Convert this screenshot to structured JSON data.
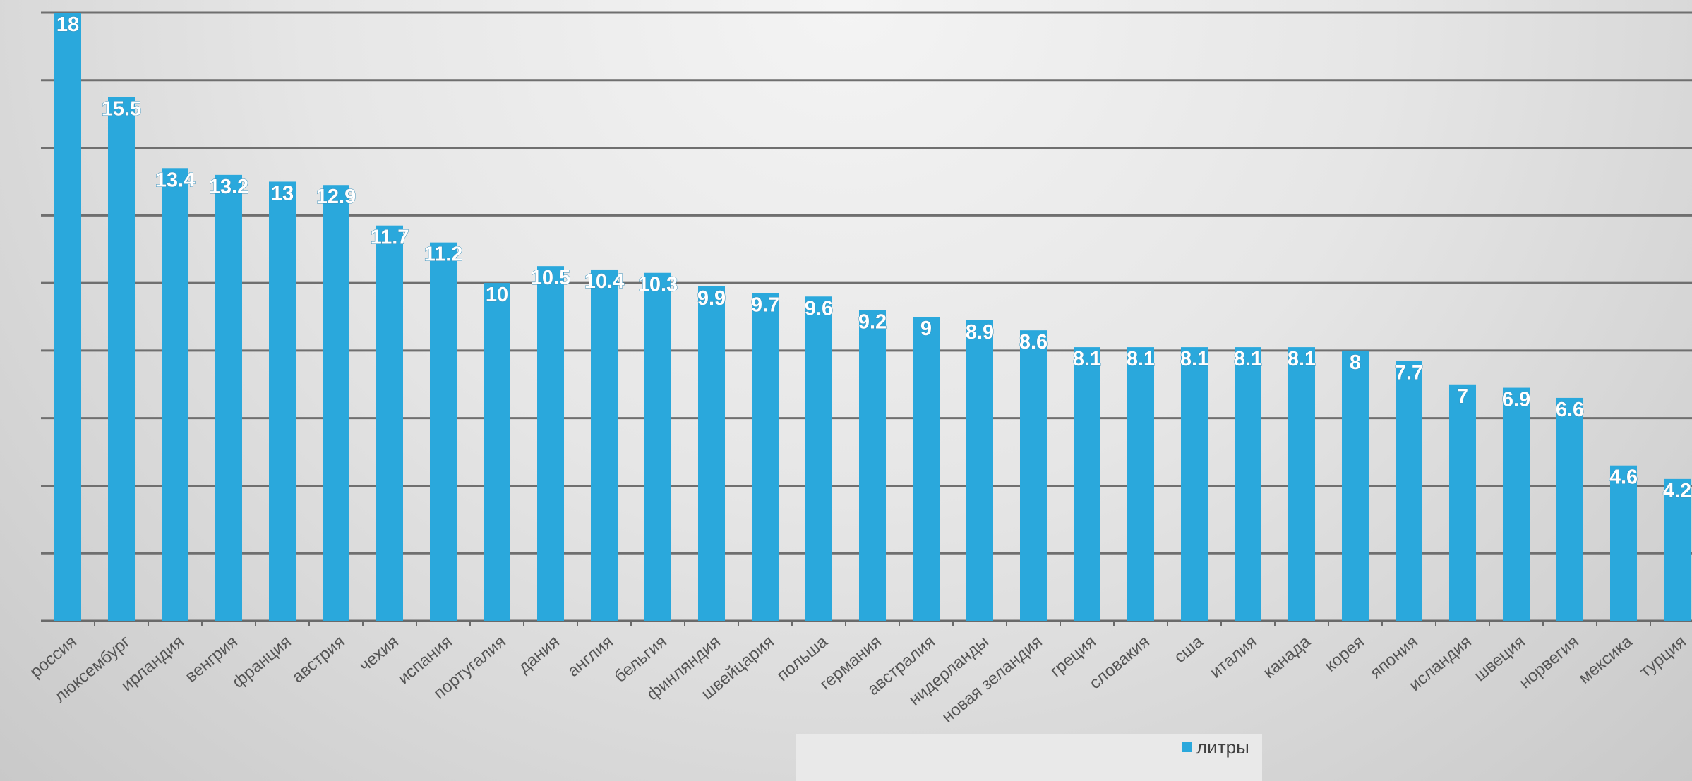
{
  "chart_data": {
    "type": "bar",
    "categories": [
      "россия",
      "люксембург",
      "ирландия",
      "венгрия",
      "франция",
      "австрия",
      "чехия",
      "испания",
      "португалия",
      "дания",
      "англия",
      "бельгия",
      "финляндия",
      "швейцария",
      "польша",
      "германия",
      "австралия",
      "нидерланды",
      "новая зеландия",
      "греция",
      "словакия",
      "сша",
      "италия",
      "канада",
      "корея",
      "япония",
      "исландия",
      "швеция",
      "норвегия",
      "мексика",
      "турция"
    ],
    "series": [
      {
        "name": "литры",
        "values": [
          18,
          15.5,
          13.4,
          13.2,
          13,
          12.9,
          11.7,
          11.2,
          10,
          10.5,
          10.4,
          10.3,
          9.9,
          9.7,
          9.6,
          9.2,
          9,
          8.9,
          8.6,
          8.1,
          8.1,
          8.1,
          8.1,
          8.1,
          8,
          7.7,
          7,
          6.9,
          6.6,
          4.6,
          4.2
        ],
        "labels": [
          "18",
          "15.5",
          "13.4",
          "13.2",
          "13",
          "12.9",
          "11.7",
          "11.2",
          "10",
          "10.5",
          "10.4",
          "10.3",
          "9.9",
          "9.7",
          "9.6",
          "9.2",
          "9",
          "8.9",
          "8.6",
          "8.1",
          "8.1",
          "8.1",
          "8.1",
          "8.1",
          "8",
          "7.7",
          "7",
          "6.9",
          "6.6",
          "4.6",
          "4.2"
        ]
      }
    ],
    "ylim": [
      0,
      18
    ],
    "ygrid_step": 2,
    "grid": true,
    "legend_position": "bottom",
    "colors": {
      "bar": "#2aa8dc"
    }
  }
}
